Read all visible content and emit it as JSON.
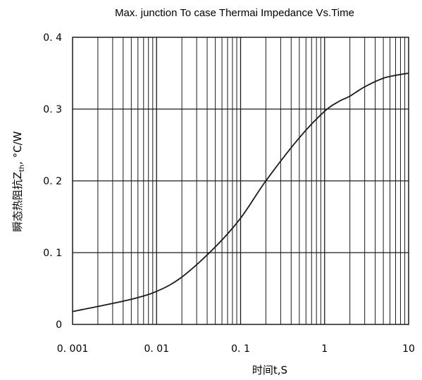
{
  "chart_data": {
    "type": "line",
    "title": "Max. junction To case Thermai Impedance Vs.Time",
    "xlabel": "时间t,S",
    "ylabel": "瞬态热阻抗Z",
    "ylabel_sub": "th",
    "ylabel_unit": ", °C/W",
    "x_scale": "log",
    "xlim": [
      0.001,
      10
    ],
    "ylim": [
      0,
      0.4
    ],
    "grid": true,
    "x_ticks": [
      0.001,
      0.01,
      0.1,
      1,
      10
    ],
    "x_tick_labels": [
      "0. 001",
      "0. 01",
      "0. 1",
      "1",
      "10"
    ],
    "y_ticks": [
      0,
      0.1,
      0.2,
      0.3,
      0.4
    ],
    "y_tick_labels": [
      "0",
      "0. 1",
      "0. 2",
      "0. 3",
      "0. 4"
    ],
    "series": [
      {
        "x": [
          0.001,
          0.002,
          0.005,
          0.01,
          0.02,
          0.05,
          0.1,
          0.2,
          0.5,
          1,
          1.5,
          2,
          3,
          5,
          7,
          10
        ],
        "y": [
          0.018,
          0.025,
          0.035,
          0.046,
          0.066,
          0.108,
          0.148,
          0.2,
          0.26,
          0.297,
          0.311,
          0.318,
          0.331,
          0.343,
          0.347,
          0.35
        ]
      }
    ]
  }
}
